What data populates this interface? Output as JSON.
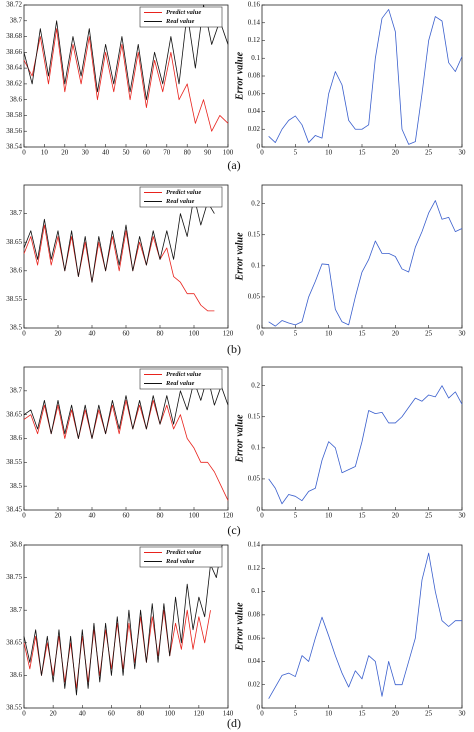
{
  "panel_labels": [
    "(a)",
    "(b)",
    "(c)",
    "(d)"
  ],
  "chart_data": [
    {
      "type": "line",
      "legend": "upper right",
      "x": [
        0,
        4,
        8,
        12,
        16,
        20,
        24,
        28,
        32,
        36,
        40,
        44,
        48,
        52,
        56,
        60,
        64,
        68,
        72,
        76,
        80,
        84,
        88,
        92,
        96,
        100
      ],
      "series": [
        {
          "name": "Predict value",
          "color": "#e8231d",
          "values": [
            38.65,
            38.63,
            38.68,
            38.62,
            38.69,
            38.61,
            38.67,
            38.62,
            38.68,
            38.6,
            38.66,
            38.61,
            38.67,
            38.6,
            38.66,
            38.59,
            38.65,
            38.61,
            38.66,
            38.6,
            38.62,
            38.57,
            38.6,
            38.56,
            38.58,
            38.57
          ]
        },
        {
          "name": "Real value",
          "color": "#111111",
          "values": [
            38.66,
            38.62,
            38.69,
            38.63,
            38.7,
            38.62,
            38.68,
            38.63,
            38.69,
            38.61,
            38.67,
            38.62,
            38.68,
            38.61,
            38.67,
            38.6,
            38.66,
            38.62,
            38.68,
            38.62,
            38.71,
            38.64,
            38.72,
            38.67,
            38.7,
            38.67
          ]
        }
      ],
      "xlim": [
        0,
        100
      ],
      "ylim": [
        38.54,
        38.72
      ],
      "xticks": [
        0,
        10,
        20,
        30,
        40,
        50,
        60,
        70,
        80,
        90,
        100
      ],
      "yticks": [
        38.54,
        38.56,
        38.58,
        38.6,
        38.62,
        38.64,
        38.66,
        38.68,
        38.7,
        38.72
      ]
    },
    {
      "type": "line",
      "y_label": "Error value",
      "color": "#3a5fcd",
      "x": [
        1,
        2,
        3,
        4,
        5,
        6,
        7,
        8,
        9,
        10,
        11,
        12,
        13,
        14,
        15,
        16,
        17,
        18,
        19,
        20,
        21,
        22,
        23,
        24,
        25,
        26,
        27,
        28,
        29,
        30
      ],
      "values": [
        0.012,
        0.005,
        0.02,
        0.03,
        0.035,
        0.025,
        0.005,
        0.013,
        0.01,
        0.06,
        0.085,
        0.07,
        0.03,
        0.02,
        0.02,
        0.025,
        0.1,
        0.145,
        0.155,
        0.13,
        0.02,
        0.003,
        0.006,
        0.06,
        0.12,
        0.147,
        0.142,
        0.095,
        0.085,
        0.102
      ],
      "xlim": [
        0,
        30
      ],
      "ylim": [
        0,
        0.16
      ],
      "xticks": [
        0,
        5,
        10,
        15,
        20,
        25,
        30
      ],
      "yticks": [
        0,
        0.02,
        0.04,
        0.06,
        0.08,
        0.1,
        0.12,
        0.14,
        0.16
      ]
    },
    {
      "type": "line",
      "legend": "upper right",
      "x": [
        0,
        4,
        8,
        12,
        16,
        20,
        24,
        28,
        32,
        36,
        40,
        44,
        48,
        52,
        56,
        60,
        64,
        68,
        72,
        76,
        80,
        84,
        88,
        92,
        96,
        100,
        104,
        108,
        112
      ],
      "series": [
        {
          "name": "Predict value",
          "color": "#e8231d",
          "values": [
            38.63,
            38.66,
            38.61,
            38.68,
            38.61,
            38.66,
            38.6,
            38.66,
            38.59,
            38.65,
            38.58,
            38.65,
            38.6,
            38.66,
            38.6,
            38.67,
            38.6,
            38.65,
            38.61,
            38.66,
            38.62,
            38.64,
            38.59,
            38.58,
            38.56,
            38.56,
            38.54,
            38.53,
            38.53
          ]
        },
        {
          "name": "Real value",
          "color": "#111111",
          "values": [
            38.64,
            38.67,
            38.62,
            38.69,
            38.62,
            38.67,
            38.6,
            38.67,
            38.59,
            38.66,
            38.58,
            38.66,
            38.6,
            38.67,
            38.61,
            38.68,
            38.6,
            38.66,
            38.61,
            38.67,
            38.62,
            38.67,
            38.62,
            38.7,
            38.66,
            38.73,
            38.68,
            38.72,
            38.7
          ]
        }
      ],
      "xlim": [
        0,
        120
      ],
      "ylim": [
        38.5,
        38.75
      ],
      "xticks": [
        0,
        20,
        40,
        60,
        80,
        100,
        120
      ],
      "yticks": [
        38.5,
        38.55,
        38.6,
        38.65,
        38.7
      ]
    },
    {
      "type": "line",
      "y_label": "Error value",
      "color": "#3a5fcd",
      "x": [
        1,
        2,
        3,
        4,
        5,
        6,
        7,
        8,
        9,
        10,
        11,
        12,
        13,
        14,
        15,
        16,
        17,
        18,
        19,
        20,
        21,
        22,
        23,
        24,
        25,
        26,
        27,
        28,
        29,
        30
      ],
      "values": [
        0.01,
        0.003,
        0.012,
        0.008,
        0.005,
        0.01,
        0.05,
        0.075,
        0.103,
        0.102,
        0.03,
        0.01,
        0.005,
        0.05,
        0.09,
        0.11,
        0.14,
        0.12,
        0.12,
        0.115,
        0.095,
        0.09,
        0.13,
        0.155,
        0.185,
        0.205,
        0.175,
        0.178,
        0.155,
        0.16
      ],
      "xlim": [
        0,
        30
      ],
      "ylim": [
        0,
        0.23
      ],
      "xticks": [
        0,
        5,
        10,
        15,
        20,
        25,
        30
      ],
      "yticks": [
        0,
        0.05,
        0.1,
        0.15,
        0.2
      ]
    },
    {
      "type": "line",
      "legend": "upper right",
      "x": [
        0,
        4,
        8,
        12,
        16,
        20,
        24,
        28,
        32,
        36,
        40,
        44,
        48,
        52,
        56,
        60,
        64,
        68,
        72,
        76,
        80,
        84,
        88,
        92,
        96,
        100,
        104,
        108,
        112,
        116,
        120
      ],
      "series": [
        {
          "name": "Predict value",
          "color": "#e8231d",
          "values": [
            38.64,
            38.65,
            38.61,
            38.67,
            38.61,
            38.67,
            38.6,
            38.66,
            38.6,
            38.66,
            38.6,
            38.66,
            38.61,
            38.67,
            38.61,
            38.68,
            38.62,
            38.67,
            38.62,
            38.68,
            38.63,
            38.67,
            38.62,
            38.65,
            38.6,
            38.58,
            38.55,
            38.55,
            38.53,
            38.5,
            38.47
          ]
        },
        {
          "name": "Real value",
          "color": "#111111",
          "values": [
            38.65,
            38.66,
            38.62,
            38.68,
            38.61,
            38.68,
            38.61,
            38.67,
            38.6,
            38.67,
            38.6,
            38.67,
            38.61,
            38.68,
            38.62,
            38.69,
            38.62,
            38.68,
            38.62,
            38.69,
            38.63,
            38.69,
            38.63,
            38.7,
            38.66,
            38.72,
            38.68,
            38.73,
            38.67,
            38.71,
            38.67
          ]
        }
      ],
      "xlim": [
        0,
        120
      ],
      "ylim": [
        38.45,
        38.75
      ],
      "xticks": [
        0,
        20,
        40,
        60,
        80,
        100,
        120
      ],
      "yticks": [
        38.45,
        38.5,
        38.55,
        38.6,
        38.65,
        38.7
      ]
    },
    {
      "type": "line",
      "y_label": "Error value",
      "color": "#3a5fcd",
      "x": [
        1,
        2,
        3,
        4,
        5,
        6,
        7,
        8,
        9,
        10,
        11,
        12,
        13,
        14,
        15,
        16,
        17,
        18,
        19,
        20,
        21,
        22,
        23,
        24,
        25,
        26,
        27,
        28,
        29,
        30
      ],
      "values": [
        0.05,
        0.035,
        0.01,
        0.025,
        0.022,
        0.015,
        0.03,
        0.035,
        0.08,
        0.11,
        0.1,
        0.06,
        0.065,
        0.07,
        0.11,
        0.16,
        0.155,
        0.157,
        0.14,
        0.14,
        0.15,
        0.165,
        0.18,
        0.175,
        0.185,
        0.182,
        0.2,
        0.18,
        0.19,
        0.17
      ],
      "xlim": [
        0,
        30
      ],
      "ylim": [
        0,
        0.23
      ],
      "xticks": [
        0,
        5,
        10,
        15,
        20,
        25,
        30
      ],
      "yticks": [
        0,
        0.05,
        0.1,
        0.15,
        0.2
      ]
    },
    {
      "type": "line",
      "legend": "upper right",
      "x": [
        0,
        4,
        8,
        12,
        16,
        20,
        24,
        28,
        32,
        36,
        40,
        44,
        48,
        52,
        56,
        60,
        64,
        68,
        72,
        76,
        80,
        84,
        88,
        92,
        96,
        100,
        104,
        108,
        112,
        116,
        120,
        124,
        128,
        132,
        136
      ],
      "series": [
        {
          "name": "Predict value",
          "color": "#e8231d",
          "values": [
            38.65,
            38.61,
            38.66,
            38.6,
            38.65,
            38.6,
            38.66,
            38.59,
            38.65,
            38.58,
            38.66,
            38.59,
            38.67,
            38.6,
            38.67,
            38.61,
            38.68,
            38.61,
            38.68,
            38.62,
            38.69,
            38.62,
            38.69,
            38.63,
            38.7,
            38.63,
            38.68,
            38.64,
            38.7,
            38.64,
            38.69,
            38.65,
            38.7,
            null,
            null
          ]
        },
        {
          "name": "Real value",
          "color": "#111111",
          "values": [
            38.66,
            38.62,
            38.67,
            38.6,
            38.66,
            38.59,
            38.67,
            38.58,
            38.66,
            38.57,
            38.67,
            38.58,
            38.68,
            38.59,
            38.68,
            38.6,
            38.69,
            38.6,
            38.7,
            38.61,
            38.7,
            38.62,
            38.71,
            38.62,
            38.71,
            38.63,
            38.72,
            38.65,
            38.74,
            38.67,
            38.72,
            38.69,
            38.77,
            38.75,
            38.8
          ]
        }
      ],
      "xlim": [
        0,
        140
      ],
      "ylim": [
        38.55,
        38.8
      ],
      "xticks": [
        0,
        20,
        40,
        60,
        80,
        100,
        120,
        140
      ],
      "yticks": [
        38.55,
        38.6,
        38.65,
        38.7,
        38.75,
        38.8
      ]
    },
    {
      "type": "line",
      "y_label": "Error value",
      "color": "#3a5fcd",
      "x": [
        1,
        2,
        3,
        4,
        5,
        6,
        7,
        8,
        9,
        10,
        11,
        12,
        13,
        14,
        15,
        16,
        17,
        18,
        19,
        20,
        21,
        22,
        23,
        24,
        25,
        26,
        27,
        28,
        29,
        30
      ],
      "values": [
        0.008,
        0.018,
        0.028,
        0.03,
        0.027,
        0.045,
        0.04,
        0.06,
        0.078,
        0.062,
        0.045,
        0.03,
        0.018,
        0.032,
        0.025,
        0.045,
        0.04,
        0.01,
        0.04,
        0.02,
        0.02,
        0.04,
        0.06,
        0.11,
        0.133,
        0.1,
        0.075,
        0.07,
        0.075,
        0.075
      ],
      "xlim": [
        0,
        30
      ],
      "ylim": [
        0,
        0.14
      ],
      "xticks": [
        0,
        5,
        10,
        15,
        20,
        25,
        30
      ],
      "yticks": [
        0,
        0.02,
        0.04,
        0.06,
        0.08,
        0.1,
        0.12,
        0.14
      ]
    }
  ]
}
